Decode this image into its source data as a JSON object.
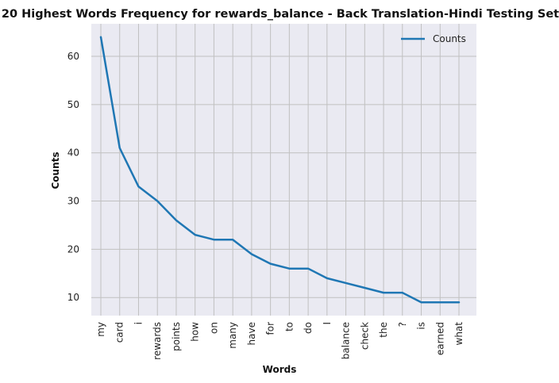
{
  "chart_data": {
    "type": "line",
    "title": "20 Highest Words Frequency for rewards_balance - Back Translation-Hindi Testing Set",
    "xlabel": "Words",
    "ylabel": "Counts",
    "categories": [
      "my",
      "card",
      "i",
      "rewards",
      "points",
      "how",
      "on",
      "many",
      "have",
      "for",
      "to",
      "do",
      "I",
      "balance",
      "check",
      "the",
      "?",
      "is",
      "earned",
      "what"
    ],
    "series": [
      {
        "name": "Counts",
        "color": "#1f77b4",
        "values": [
          64,
          41,
          33,
          30,
          26,
          23,
          22,
          22,
          19,
          17,
          16,
          16,
          14,
          13,
          12,
          11,
          11,
          9,
          9,
          9
        ]
      }
    ],
    "ylim": [
      6.25,
      66.75
    ],
    "yticks": [
      10,
      20,
      30,
      40,
      50,
      60
    ],
    "grid": true,
    "legend": "top-right",
    "background": "#eaeaf2",
    "grid_color": "#c0c0c0"
  }
}
